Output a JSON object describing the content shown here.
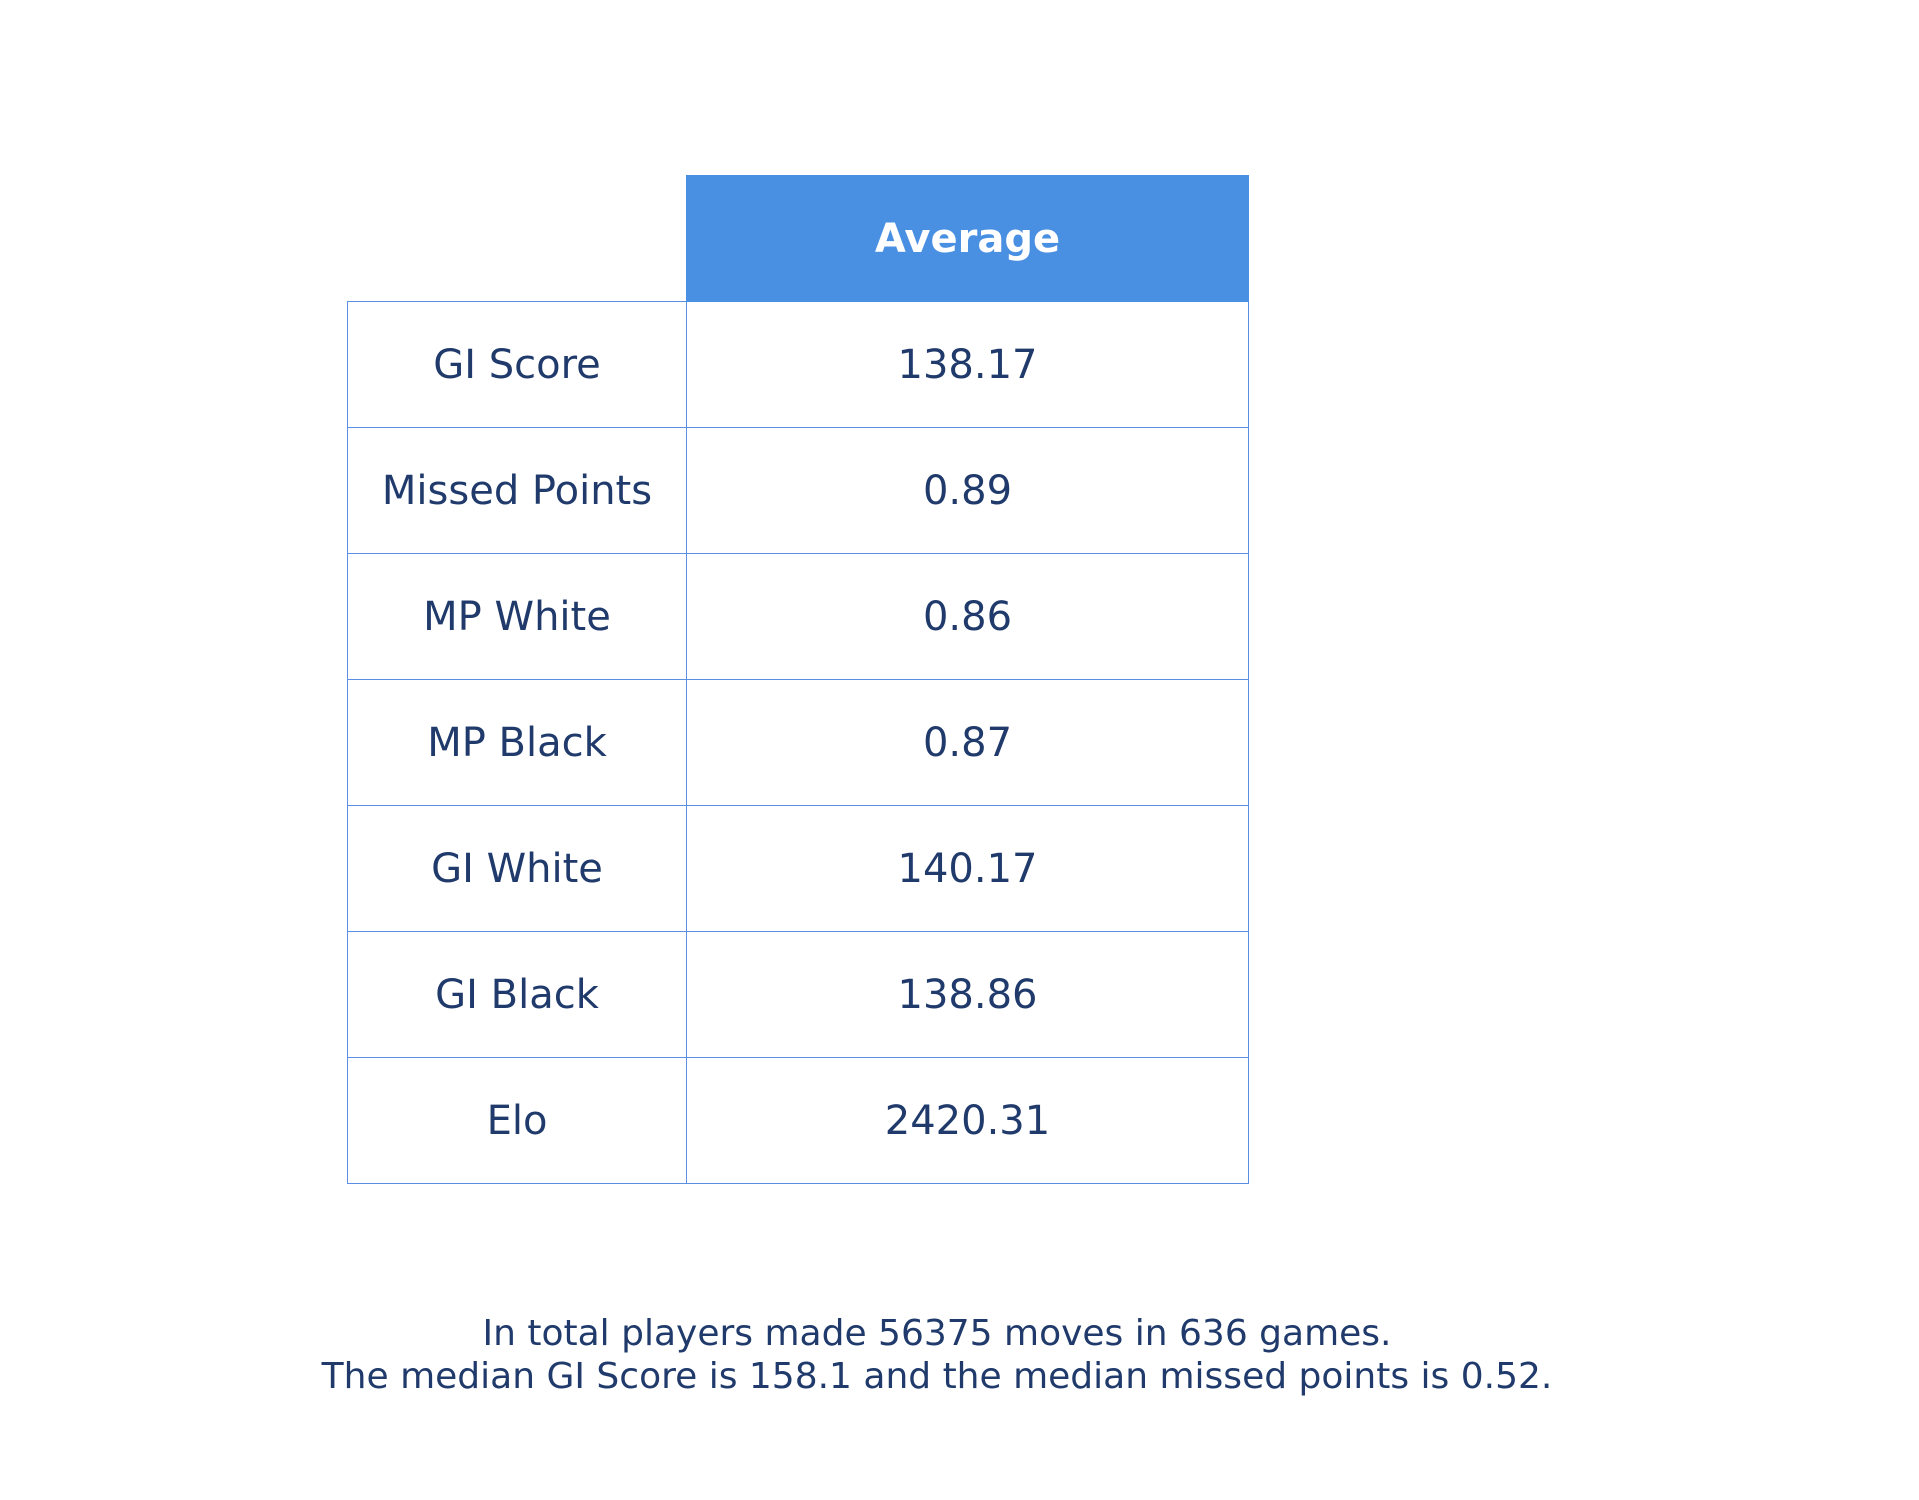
{
  "colors": {
    "header_background": "#4a90e2",
    "header_text": "#ffffff",
    "border": "#5b8fe3",
    "text": "#1f3a6b",
    "background": "#ffffff"
  },
  "chart_data": {
    "type": "table",
    "columns": [
      "",
      "Average"
    ],
    "rows": [
      {
        "label": "GI Score",
        "value": "138.17"
      },
      {
        "label": "Missed Points",
        "value": "0.89"
      },
      {
        "label": "MP White",
        "value": "0.86"
      },
      {
        "label": "MP Black",
        "value": "0.87"
      },
      {
        "label": "GI White",
        "value": "140.17"
      },
      {
        "label": "GI Black",
        "value": "138.86"
      },
      {
        "label": "Elo",
        "value": "2420.31"
      }
    ],
    "annotations": [
      "In total players made 56375 moves in 636 games.",
      "The median GI Score is 158.1 and the median missed points is 0.52."
    ]
  }
}
